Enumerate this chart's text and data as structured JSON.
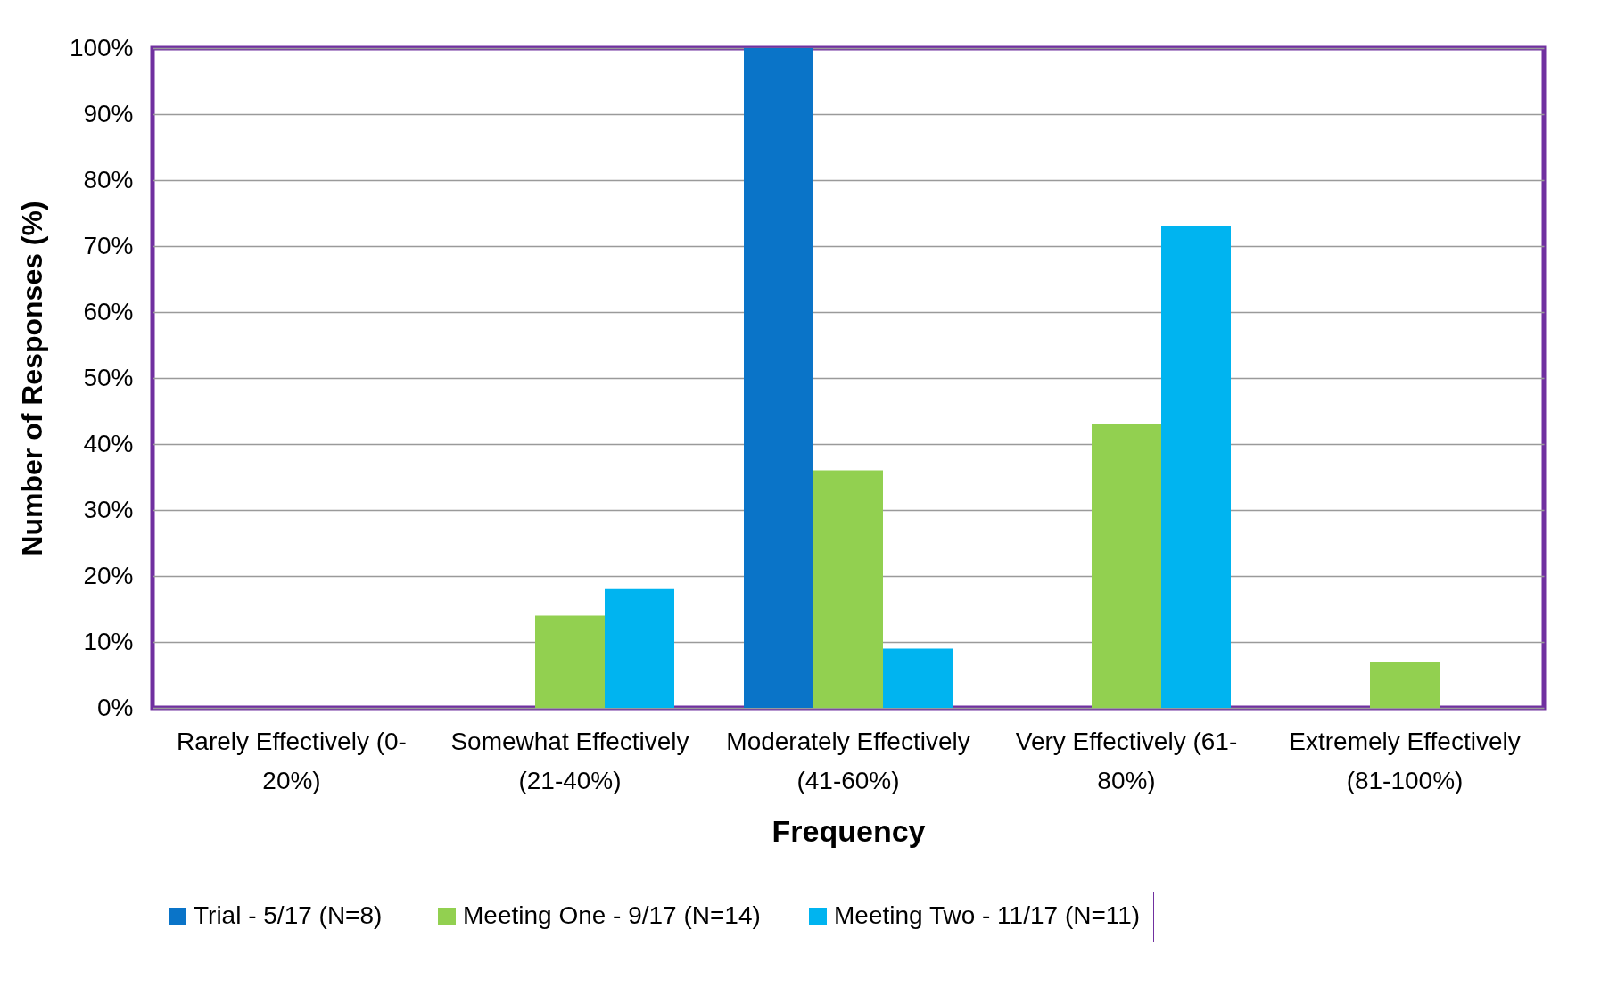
{
  "chart_data": {
    "type": "bar",
    "xlabel": "Frequency",
    "ylabel": "Number of Responses (%)",
    "categories": [
      "Rarely Effectively (0-20%)",
      "Somewhat Effectively (21-40%)",
      "Moderately Effectively (41-60%)",
      "Very Effectively (61-80%)",
      "Extremely Effectively (81-100%)"
    ],
    "series": [
      {
        "name": "Trial -  5/17 (N=8)",
        "color": "#0a74c8",
        "values": [
          0,
          0,
          100,
          0,
          0
        ]
      },
      {
        "name": "Meeting One - 9/17 (N=14)",
        "color": "#92d050",
        "values": [
          0,
          14,
          36,
          43,
          7
        ]
      },
      {
        "name": "Meeting Two - 11/17 (N=11)",
        "color": "#00b4f0",
        "values": [
          0,
          18,
          9,
          73,
          0
        ]
      }
    ],
    "ylim": [
      0,
      100
    ],
    "yticks": [
      {
        "value": 0,
        "label": "0%"
      },
      {
        "value": 10,
        "label": "10%"
      },
      {
        "value": 20,
        "label": "20%"
      },
      {
        "value": 30,
        "label": "30%"
      },
      {
        "value": 40,
        "label": "40%"
      },
      {
        "value": 50,
        "label": "50%"
      },
      {
        "value": 60,
        "label": "60%"
      },
      {
        "value": 70,
        "label": "70%"
      },
      {
        "value": 80,
        "label": "80%"
      },
      {
        "value": 90,
        "label": "90%"
      },
      {
        "value": 100,
        "label": "100%"
      }
    ],
    "grid": "y",
    "legend": "bottom"
  }
}
